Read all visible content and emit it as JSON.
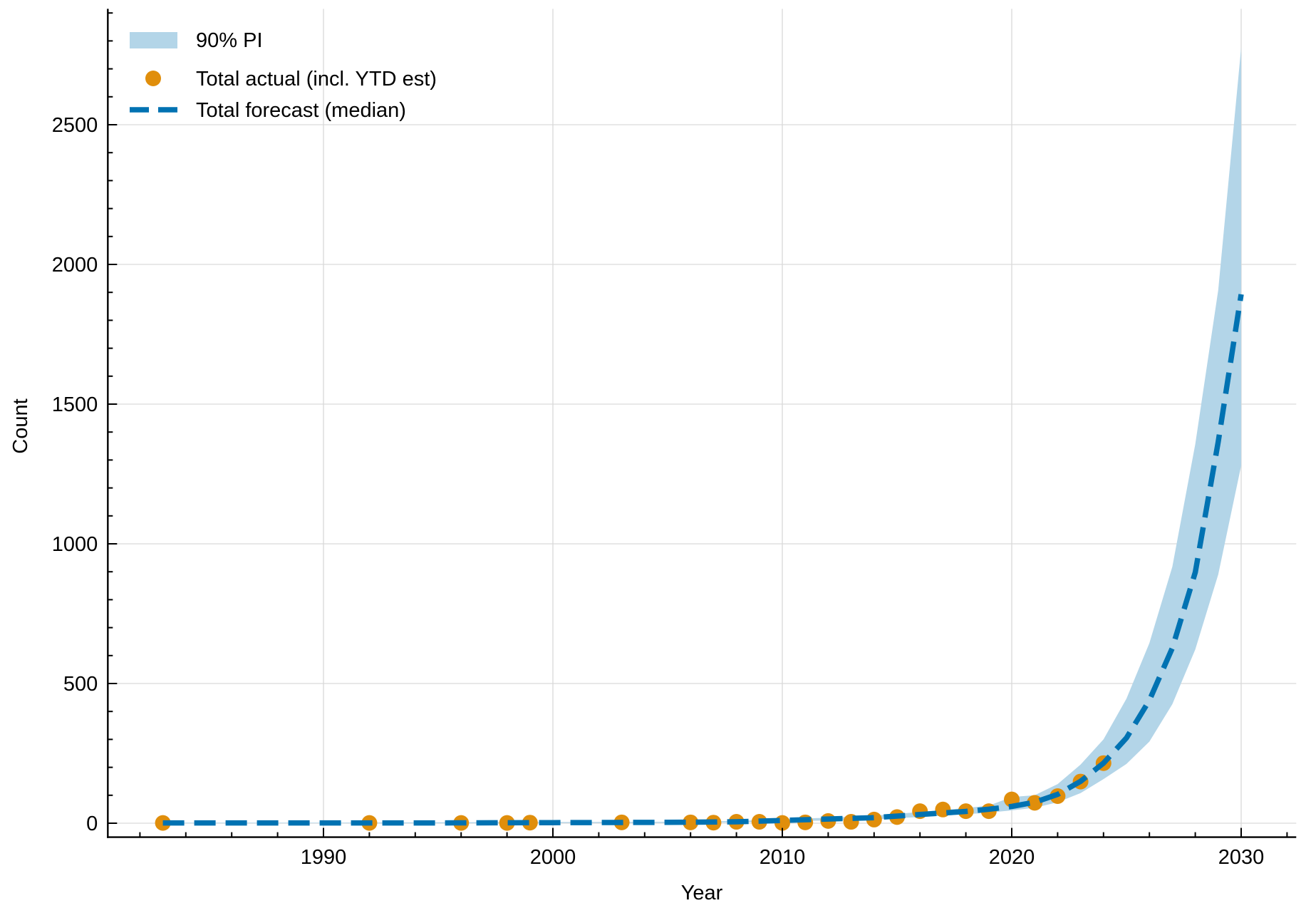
{
  "colors": {
    "band": "#b3d5e8",
    "actual": "#e08e0b",
    "forecast": "#0072b2",
    "grid": "#d9d9d9",
    "axis": "#000000"
  },
  "legend": {
    "items": [
      {
        "label": "90% PI",
        "kind": "patch"
      },
      {
        "label": "Total actual (incl. YTD est)",
        "kind": "marker"
      },
      {
        "label": "Total forecast (median)",
        "kind": "dashed-line"
      }
    ]
  },
  "axes": {
    "xlabel": "Year",
    "ylabel": "Count",
    "xticks": [
      1990,
      2000,
      2010,
      2020,
      2030
    ],
    "yticks": [
      0,
      500,
      1000,
      1500,
      2000,
      2500
    ]
  },
  "chart_data": {
    "type": "line",
    "title": "",
    "xlabel": "Year",
    "ylabel": "Count",
    "xlim": [
      1980.6,
      2032.4
    ],
    "ylim": [
      -50,
      2915
    ],
    "grid": true,
    "legend_position": "upper left",
    "x_ticks": [
      1990,
      2000,
      2010,
      2020,
      2030
    ],
    "y_ticks": [
      0,
      500,
      1000,
      1500,
      2000,
      2500
    ],
    "series": [
      {
        "name": "Total actual (incl. YTD est)",
        "type": "scatter",
        "x": [
          1983,
          1992,
          1996,
          1998,
          1999,
          2003,
          2006,
          2007,
          2008,
          2009,
          2010,
          2011,
          2012,
          2013,
          2014,
          2015,
          2016,
          2017,
          2018,
          2019,
          2020,
          2021,
          2022,
          2023,
          2024
        ],
        "values": [
          1,
          1,
          1,
          1,
          2,
          3,
          3,
          2,
          5,
          5,
          1,
          3,
          8,
          5,
          13,
          22,
          43,
          49,
          43,
          43,
          85,
          73,
          97,
          149,
          215
        ]
      },
      {
        "name": "Total forecast (median)",
        "type": "line",
        "style": "dashed",
        "x": [
          1983,
          1990,
          1995,
          2000,
          2005,
          2008,
          2010,
          2012,
          2014,
          2016,
          2018,
          2019,
          2020,
          2021,
          2022,
          2023,
          2024,
          2025,
          2026,
          2027,
          2028,
          2029,
          2030
        ],
        "values": [
          1,
          1,
          1,
          2,
          3,
          5,
          10,
          15,
          20,
          31,
          42,
          50,
          60,
          75,
          103,
          150,
          215,
          305,
          440,
          627,
          898,
          1365,
          1893
        ]
      },
      {
        "name": "90% PI",
        "type": "area",
        "x": [
          1983,
          1990,
          1995,
          2000,
          2005,
          2008,
          2010,
          2012,
          2014,
          2016,
          2018,
          2019,
          2020,
          2021,
          2022,
          2023,
          2024,
          2025,
          2026,
          2027,
          2028,
          2029,
          2030
        ],
        "lower": [
          0,
          0,
          0,
          1,
          2,
          3,
          6,
          10,
          14,
          22,
          32,
          38,
          46,
          55,
          75,
          108,
          158,
          212,
          292,
          426,
          622,
          890,
          1280
        ],
        "upper": [
          2,
          2,
          3,
          4,
          5,
          8,
          14,
          20,
          27,
          40,
          54,
          63,
          94,
          100,
          140,
          210,
          300,
          446,
          645,
          918,
          1357,
          1908,
          2776
        ]
      }
    ]
  }
}
